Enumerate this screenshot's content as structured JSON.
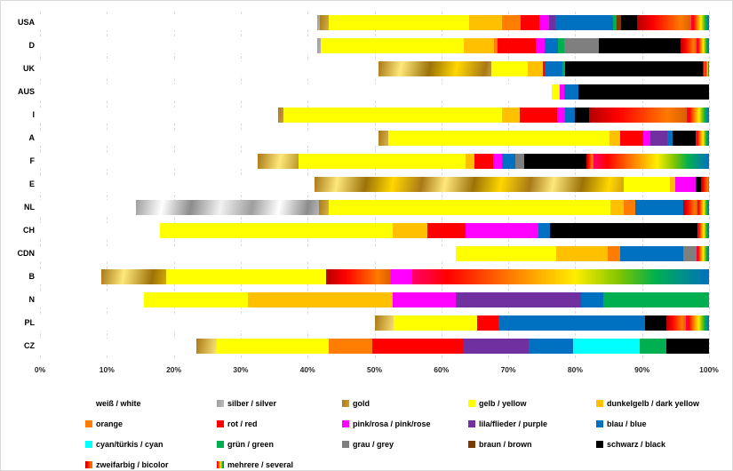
{
  "chart_data": {
    "type": "bar",
    "variant": "100%-stacked-horizontal",
    "title": "",
    "xlabel": "",
    "ylabel": "",
    "x_axis": {
      "min": 0,
      "max": 100,
      "unit": "%",
      "tick_step": 10,
      "tick_labels": [
        "0%",
        "10%",
        "20%",
        "30%",
        "40%",
        "50%",
        "60%",
        "70%",
        "80%",
        "90%",
        "100%"
      ]
    },
    "grid": "vertical-dashed",
    "legend_position": "bottom",
    "categories": [
      "USA",
      "D",
      "UK",
      "AUS",
      "I",
      "A",
      "F",
      "E",
      "NL",
      "CH",
      "CDN",
      "B",
      "N",
      "PL",
      "CZ"
    ],
    "legend": [
      {
        "id": "weiss",
        "label": "weiß / white",
        "color": "#FFFFFF"
      },
      {
        "id": "silber",
        "label": "silber / silver",
        "color": "gradient-silver #C0C0C0"
      },
      {
        "id": "gold",
        "label": "gold",
        "color": "gradient-gold #D4A017"
      },
      {
        "id": "gelb",
        "label": "gelb / yellow",
        "color": "#FFFF00"
      },
      {
        "id": "dunkelgelb",
        "label": "dunkelgelb / dark yellow",
        "color": "#FFC000"
      },
      {
        "id": "orange",
        "label": "orange",
        "color": "#FF7D00"
      },
      {
        "id": "rot",
        "label": "rot / red",
        "color": "#FF0000"
      },
      {
        "id": "pink",
        "label": "pink/rosa / pink/rose",
        "color": "#FF00FF"
      },
      {
        "id": "lila",
        "label": "lila/flieder / purple",
        "color": "#7030A0"
      },
      {
        "id": "blau",
        "label": "blau / blue",
        "color": "#0070C0"
      },
      {
        "id": "cyan",
        "label": "cyan/türkis / cyan",
        "color": "#00FFFF"
      },
      {
        "id": "gruen",
        "label": "grün / green",
        "color": "#00B050"
      },
      {
        "id": "grau",
        "label": "grau / grey",
        "color": "#7F7F7F"
      },
      {
        "id": "braun",
        "label": "braun / brown",
        "color": "#7B3900"
      },
      {
        "id": "schwarz",
        "label": "schwarz / black",
        "color": "#000000"
      },
      {
        "id": "zweifarbig",
        "label": "zweifarbig / bicolor",
        "color": "gradient-red-orange #FF0000"
      },
      {
        "id": "mehrere",
        "label": "mehrere / several",
        "color": "gradient-rainbow"
      }
    ],
    "rows": [
      {
        "country": "USA",
        "segments": [
          [
            "weiss",
            41.5
          ],
          [
            "silber",
            0.4
          ],
          [
            "gold",
            1.3
          ],
          [
            "gelb",
            20.9
          ],
          [
            "dunkelgelb",
            5.0
          ],
          [
            "orange",
            2.8
          ],
          [
            "rot",
            2.7
          ],
          [
            "pink",
            1.5
          ],
          [
            "lila",
            0.9
          ],
          [
            "blau",
            8.7
          ],
          [
            "gruen",
            0.5
          ],
          [
            "braun",
            0.6
          ],
          [
            "schwarz",
            2.4
          ],
          [
            "zweifarbig",
            8.1
          ],
          [
            "mehrere",
            2.7
          ]
        ]
      },
      {
        "country": "D",
        "segments": [
          [
            "weiss",
            41.5
          ],
          [
            "silber",
            0.5
          ],
          [
            "gelb",
            21.4
          ],
          [
            "dunkelgelb",
            4.4
          ],
          [
            "orange",
            0.6
          ],
          [
            "rot",
            5.7
          ],
          [
            "pink",
            1.3
          ],
          [
            "blau",
            2.0
          ],
          [
            "gruen",
            0.9
          ],
          [
            "grau",
            5.2
          ],
          [
            "schwarz",
            12.2
          ],
          [
            "zweifarbig",
            2.5
          ],
          [
            "mehrere",
            1.8
          ]
        ]
      },
      {
        "country": "UK",
        "segments": [
          [
            "weiss",
            50.6
          ],
          [
            "gold",
            16.9
          ],
          [
            "gelb",
            5.4
          ],
          [
            "dunkelgelb",
            2.3
          ],
          [
            "rot",
            0.3
          ],
          [
            "blau",
            2.6
          ],
          [
            "gruen",
            0.4
          ],
          [
            "schwarz",
            20.6
          ],
          [
            "zweifarbig",
            0.4
          ],
          [
            "mehrere",
            0.5
          ]
        ]
      },
      {
        "country": "AUS",
        "segments": [
          [
            "weiss",
            76.5
          ],
          [
            "gelb",
            1.2
          ],
          [
            "pink",
            0.7
          ],
          [
            "blau",
            2.1
          ],
          [
            "schwarz",
            19.5
          ]
        ]
      },
      {
        "country": "I",
        "segments": [
          [
            "weiss",
            35.6
          ],
          [
            "gold",
            0.8
          ],
          [
            "gelb",
            32.6
          ],
          [
            "dunkelgelb",
            2.7
          ],
          [
            "rot",
            5.6
          ],
          [
            "pink",
            1.2
          ],
          [
            "blau",
            1.4
          ],
          [
            "schwarz",
            2.2
          ],
          [
            "zweifarbig",
            14.6
          ],
          [
            "mehrere",
            3.3
          ]
        ]
      },
      {
        "country": "A",
        "segments": [
          [
            "weiss",
            50.6
          ],
          [
            "gold",
            1.5
          ],
          [
            "gelb",
            33.0
          ],
          [
            "dunkelgelb",
            1.6
          ],
          [
            "rot",
            3.5
          ],
          [
            "pink",
            1.0
          ],
          [
            "lila",
            2.6
          ],
          [
            "blau",
            0.7
          ],
          [
            "schwarz",
            3.5
          ],
          [
            "mehrere",
            2.0
          ]
        ]
      },
      {
        "country": "F",
        "segments": [
          [
            "weiss",
            32.6
          ],
          [
            "gold",
            6.1
          ],
          [
            "gelb",
            24.9
          ],
          [
            "dunkelgelb",
            1.3
          ],
          [
            "rot",
            2.9
          ],
          [
            "pink",
            1.2
          ],
          [
            "blau",
            2.0
          ],
          [
            "grau",
            1.4
          ],
          [
            "schwarz",
            9.3
          ],
          [
            "zweifarbig",
            1.0
          ],
          [
            "mehrere",
            17.3
          ]
        ]
      },
      {
        "country": "E",
        "segments": [
          [
            "weiss",
            41.0
          ],
          [
            "gold",
            46.2
          ],
          [
            "gelb",
            7.0
          ],
          [
            "dunkelgelb",
            0.8
          ],
          [
            "pink",
            3.0
          ],
          [
            "schwarz",
            0.8
          ],
          [
            "zweifarbig",
            1.2
          ]
        ]
      },
      {
        "country": "NL",
        "segments": [
          [
            "weiss",
            14.4
          ],
          [
            "silber",
            27.3
          ],
          [
            "gold",
            1.4
          ],
          [
            "gelb",
            42.2
          ],
          [
            "dunkelgelb",
            1.9
          ],
          [
            "orange",
            1.8
          ],
          [
            "blau",
            7.2
          ],
          [
            "zweifarbig",
            2.1
          ],
          [
            "mehrere",
            1.7
          ]
        ]
      },
      {
        "country": "CH",
        "segments": [
          [
            "weiss",
            17.9
          ],
          [
            "gelb",
            34.8
          ],
          [
            "dunkelgelb",
            5.2
          ],
          [
            "rot",
            5.7
          ],
          [
            "pink",
            10.9
          ],
          [
            "blau",
            1.7
          ],
          [
            "schwarz",
            22.1
          ],
          [
            "mehrere",
            1.7
          ]
        ]
      },
      {
        "country": "CDN",
        "segments": [
          [
            "weiss",
            62.1
          ],
          [
            "gelb",
            15.1
          ],
          [
            "dunkelgelb",
            7.7
          ],
          [
            "orange",
            1.8
          ],
          [
            "blau",
            9.5
          ],
          [
            "grau",
            2.0
          ],
          [
            "mehrere",
            1.8
          ]
        ]
      },
      {
        "country": "B",
        "segments": [
          [
            "weiss",
            9.2
          ],
          [
            "gold",
            9.6
          ],
          [
            "gelb",
            23.9
          ],
          [
            "zweifarbig",
            9.7
          ],
          [
            "pink",
            3.3
          ],
          [
            "mehrere",
            44.3
          ]
        ]
      },
      {
        "country": "N",
        "segments": [
          [
            "weiss",
            15.5
          ],
          [
            "gelb",
            15.6
          ],
          [
            "dunkelgelb",
            21.6
          ],
          [
            "pink",
            9.5
          ],
          [
            "lila",
            18.7
          ],
          [
            "blau",
            3.3
          ],
          [
            "gruen",
            15.8
          ]
        ]
      },
      {
        "country": "PL",
        "segments": [
          [
            "weiss",
            50.0
          ],
          [
            "gold",
            2.8
          ],
          [
            "gelb",
            12.6
          ],
          [
            "rot",
            3.1
          ],
          [
            "blau",
            22.0
          ],
          [
            "schwarz",
            3.1
          ],
          [
            "zweifarbig",
            3.0
          ],
          [
            "mehrere",
            3.4
          ]
        ]
      },
      {
        "country": "CZ",
        "segments": [
          [
            "weiss",
            23.4
          ],
          [
            "gold",
            3.0
          ],
          [
            "gelb",
            16.7
          ],
          [
            "orange",
            6.6
          ],
          [
            "rot",
            13.5
          ],
          [
            "lila",
            9.9
          ],
          [
            "blau",
            6.6
          ],
          [
            "cyan",
            10.0
          ],
          [
            "gruen",
            3.9
          ],
          [
            "schwarz",
            6.4
          ]
        ]
      }
    ]
  }
}
